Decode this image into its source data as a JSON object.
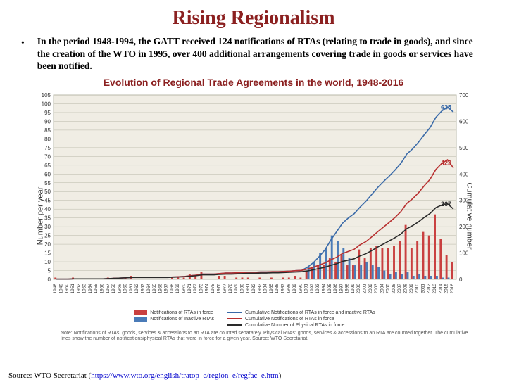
{
  "slide": {
    "title": "Rising Regionalism",
    "bullet": "In the period 1948-1994, the GATT received 124 notifications of RTAs (relating to trade in goods), and since the creation of the WTO in 1995, over 400 additional arrangements covering trade in goods or services have been notified."
  },
  "chart": {
    "type": "bar+line",
    "title": "Evolution of Regional Trade Agreements in the world, 1948-2016",
    "ylabel_left": "Number per year",
    "ylabel_right": "Cumulative number",
    "background_color": "#f0ede4",
    "grid_color": "#b8b8a8",
    "y_left": {
      "min": 0,
      "max": 105,
      "step": 5
    },
    "y_right": {
      "min": 0,
      "max": 700,
      "step": 100
    },
    "years": [
      1948,
      1949,
      1950,
      1951,
      1952,
      1953,
      1954,
      1955,
      1956,
      1957,
      1958,
      1959,
      1960,
      1961,
      1962,
      1963,
      1964,
      1965,
      1966,
      1967,
      1968,
      1969,
      1970,
      1971,
      1972,
      1973,
      1974,
      1975,
      1976,
      1977,
      1978,
      1979,
      1980,
      1981,
      1982,
      1983,
      1984,
      1985,
      1986,
      1987,
      1988,
      1989,
      1990,
      1991,
      1992,
      1993,
      1994,
      1995,
      1996,
      1997,
      1998,
      1999,
      2000,
      2001,
      2002,
      2003,
      2004,
      2005,
      2006,
      2007,
      2008,
      2009,
      2010,
      2011,
      2012,
      2013,
      2014,
      2015,
      2016
    ],
    "bars_red": {
      "label": "Notifications of RTAs in force",
      "color": "#c94040",
      "values": [
        1,
        0,
        0,
        1,
        0,
        0,
        0,
        0,
        0,
        1,
        1,
        1,
        1,
        2,
        0,
        0,
        0,
        0,
        0,
        0,
        1,
        1,
        1,
        3,
        2,
        4,
        0,
        0,
        2,
        2,
        0,
        1,
        1,
        1,
        0,
        1,
        0,
        1,
        0,
        1,
        1,
        2,
        1,
        5,
        7,
        8,
        8,
        12,
        10,
        14,
        8,
        8,
        17,
        12,
        18,
        19,
        18,
        18,
        19,
        22,
        31,
        18,
        22,
        27,
        25,
        37,
        23,
        14,
        10
      ]
    },
    "bars_blue": {
      "label": "Notifications of Inactive RTAs",
      "color": "#4a7bb8",
      "values": [
        0,
        0,
        0,
        0,
        0,
        0,
        0,
        0,
        0,
        0,
        0,
        0,
        0,
        0,
        0,
        0,
        0,
        0,
        0,
        0,
        0,
        0,
        0,
        0,
        0,
        0,
        0,
        0,
        0,
        0,
        0,
        0,
        0,
        0,
        0,
        0,
        0,
        0,
        0,
        0,
        0,
        0,
        0,
        7,
        10,
        15,
        18,
        25,
        22,
        18,
        12,
        8,
        8,
        10,
        8,
        7,
        5,
        3,
        4,
        3,
        4,
        2,
        3,
        2,
        2,
        2,
        1,
        1,
        0
      ]
    },
    "line_blue": {
      "label": "Cumulative Notifications of RTAs in force and inactive RTAs",
      "color": "#3a6aa8",
      "end_label": "635",
      "values": [
        1,
        1,
        1,
        2,
        2,
        2,
        2,
        2,
        2,
        3,
        4,
        5,
        6,
        8,
        8,
        8,
        8,
        8,
        8,
        8,
        9,
        10,
        11,
        14,
        16,
        20,
        20,
        20,
        22,
        24,
        24,
        25,
        26,
        27,
        27,
        28,
        28,
        29,
        29,
        30,
        31,
        33,
        34,
        46,
        63,
        86,
        112,
        149,
        181,
        213,
        233,
        249,
        274,
        296,
        322,
        348,
        371,
        392,
        415,
        440,
        475,
        495,
        520,
        549,
        576,
        615,
        639,
        654,
        635
      ]
    },
    "line_red": {
      "label": "Cumulative Notifications of RTAs in force",
      "color": "#b83030",
      "end_label": "423",
      "values": [
        1,
        1,
        1,
        2,
        2,
        2,
        2,
        2,
        2,
        3,
        4,
        5,
        6,
        8,
        8,
        8,
        8,
        8,
        8,
        8,
        9,
        10,
        11,
        14,
        16,
        20,
        20,
        20,
        22,
        24,
        24,
        25,
        26,
        27,
        27,
        28,
        28,
        29,
        29,
        30,
        31,
        33,
        34,
        39,
        46,
        54,
        62,
        74,
        84,
        98,
        106,
        114,
        131,
        143,
        161,
        180,
        198,
        216,
        235,
        257,
        288,
        306,
        328,
        355,
        380,
        417,
        440,
        454,
        423
      ]
    },
    "line_black": {
      "label": "Cumulative Number of Physical RTAs in force",
      "color": "#2a2a2a",
      "end_label": "267",
      "values": [
        1,
        1,
        1,
        2,
        2,
        2,
        2,
        2,
        2,
        3,
        4,
        5,
        6,
        7,
        7,
        7,
        7,
        7,
        7,
        7,
        8,
        9,
        10,
        12,
        14,
        17,
        17,
        17,
        19,
        20,
        20,
        21,
        22,
        23,
        23,
        24,
        24,
        25,
        25,
        26,
        27,
        28,
        29,
        32,
        36,
        41,
        46,
        53,
        59,
        68,
        73,
        78,
        89,
        97,
        109,
        122,
        134,
        146,
        158,
        172,
        192,
        204,
        218,
        235,
        250,
        272,
        282,
        287,
        267
      ]
    },
    "legend_position": "bottom",
    "note": "Note: Notifications of RTAs: goods, services & accessions to an RTA are counted separately. Physical RTAs: goods, services & accessions to an RTA are counted together. The cumulative lines show the number of notifications/physical RTAs that were in force for a given year. Source: WTO Secretariat."
  },
  "source": {
    "prefix": "Source: WTO Secretariat (",
    "url": "https://www.wto.org/english/tratop_e/region_e/regfac_e.htm",
    "suffix": ")"
  }
}
